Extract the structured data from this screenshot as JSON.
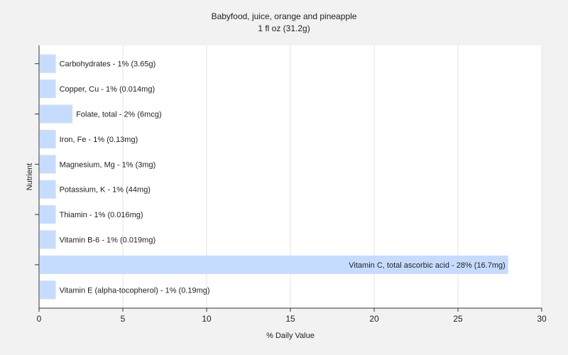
{
  "chart_data": {
    "type": "bar",
    "orientation": "horizontal",
    "title": "Babyfood, juice, orange and pineapple",
    "subtitle": "1 fl oz (31.2g)",
    "xlabel": "% Daily Value",
    "ylabel": "Nutrient",
    "xlim": [
      0,
      30
    ],
    "xticks": [
      0,
      5,
      10,
      15,
      20,
      25,
      30
    ],
    "grid": true,
    "bar_color": "#c6dcff",
    "categories": [
      "Carbohydrates",
      "Copper, Cu",
      "Folate, total",
      "Iron, Fe",
      "Magnesium, Mg",
      "Potassium, K",
      "Thiamin",
      "Vitamin B-6",
      "Vitamin C, total ascorbic acid",
      "Vitamin E (alpha-tocopherol)"
    ],
    "values": [
      1,
      1,
      2,
      1,
      1,
      1,
      1,
      1,
      28,
      1
    ],
    "labels": [
      "Carbohydrates - 1% (3.65g)",
      "Copper, Cu - 1% (0.014mg)",
      "Folate, total - 2% (6mcg)",
      "Iron, Fe - 1% (0.13mg)",
      "Magnesium, Mg - 1% (3mg)",
      "Potassium, K - 1% (44mg)",
      "Thiamin - 1% (0.016mg)",
      "Vitamin B-6 - 1% (0.019mg)",
      "Vitamin C, total ascorbic acid - 28% (16.7mg)",
      "Vitamin E (alpha-tocopherol) - 1% (0.19mg)"
    ]
  }
}
